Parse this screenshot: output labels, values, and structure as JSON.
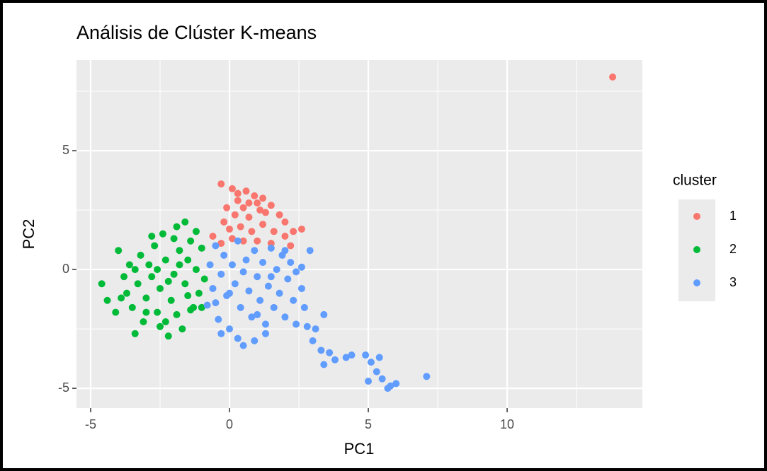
{
  "chart_data": {
    "type": "scatter",
    "title": "Análisis de Clúster K-means",
    "xlabel": "PC1",
    "ylabel": "PC2",
    "xlim": [
      -5.51,
      14.87
    ],
    "ylim": [
      -5.83,
      8.81
    ],
    "xticks": [
      -5,
      0,
      5,
      10
    ],
    "yticks": [
      -5,
      0,
      5
    ],
    "xminor": [
      -2.5,
      2.5,
      7.5,
      12.5
    ],
    "yminor": [
      -2.5,
      2.5,
      7.5
    ],
    "grid": true,
    "legend_title": "cluster",
    "legend": "right",
    "series": [
      {
        "name": "1",
        "color": "#F8766D",
        "x": [
          13.8,
          -0.3,
          0.1,
          0.3,
          0.6,
          0.9,
          1.2,
          1.5,
          1.0,
          0.5,
          0.2,
          0.7,
          1.3,
          1.8,
          2.0,
          2.3,
          2.6,
          -0.2,
          0.0,
          0.4,
          0.8,
          1.2,
          1.6,
          -0.6,
          -0.3,
          0.1,
          0.5,
          1.0,
          1.5,
          2.2,
          2.0,
          0.3,
          0.7,
          1.1,
          -0.1
        ],
        "y": [
          8.1,
          3.6,
          3.4,
          3.2,
          3.3,
          3.1,
          3.0,
          2.7,
          2.8,
          2.6,
          2.3,
          2.2,
          2.4,
          2.3,
          2.0,
          1.6,
          1.7,
          2.0,
          1.7,
          1.8,
          1.6,
          1.9,
          1.6,
          1.4,
          1.1,
          1.3,
          1.2,
          1.2,
          1.1,
          1.0,
          1.4,
          2.9,
          2.8,
          2.5,
          2.6
        ]
      },
      {
        "name": "2",
        "color": "#00BA38",
        "x": [
          -4.6,
          -4.4,
          -4.1,
          -4.0,
          -3.8,
          -3.7,
          -3.6,
          -3.5,
          -3.4,
          -3.3,
          -3.2,
          -3.1,
          -3.0,
          -2.9,
          -2.8,
          -2.7,
          -2.6,
          -2.5,
          -2.4,
          -2.3,
          -2.2,
          -2.1,
          -2.0,
          -1.9,
          -1.8,
          -1.7,
          -1.6,
          -1.5,
          -1.4,
          -1.3,
          -1.2,
          -1.1,
          -1.0,
          -0.9,
          -1.6,
          -2.0,
          -2.6,
          -3.0,
          -1.9,
          -1.4,
          -2.3,
          -3.9,
          -2.8,
          -1.2,
          -1.0,
          -2.2,
          -1.8,
          -3.4,
          -2.5,
          -1.5
        ],
        "y": [
          -0.6,
          -1.3,
          -1.8,
          0.8,
          -0.3,
          -1.0,
          0.2,
          -1.6,
          -2.7,
          -0.6,
          0.6,
          -2.2,
          -1.2,
          0.2,
          -0.3,
          1.0,
          -1.8,
          -0.8,
          1.5,
          0.4,
          -2.8,
          -1.3,
          -0.2,
          1.8,
          0.8,
          -2.5,
          -0.6,
          0.4,
          1.2,
          -1.6,
          0.0,
          -1.0,
          0.9,
          -0.4,
          2.0,
          1.3,
          0.0,
          -1.8,
          -1.9,
          -1.7,
          -2.2,
          -1.2,
          1.4,
          1.6,
          -1.6,
          -0.5,
          0.2,
          0.0,
          -2.4,
          -1.1
        ]
      },
      {
        "name": "3",
        "color": "#619CFF",
        "x": [
          -0.8,
          -0.7,
          -0.6,
          -0.5,
          -0.4,
          -0.3,
          -0.2,
          -0.1,
          0.0,
          0.1,
          0.2,
          0.3,
          0.4,
          0.5,
          0.6,
          0.7,
          0.8,
          0.9,
          1.0,
          1.1,
          1.2,
          1.3,
          1.4,
          1.5,
          1.6,
          1.7,
          1.8,
          1.9,
          2.0,
          2.1,
          2.2,
          2.3,
          2.4,
          2.6,
          2.7,
          2.9,
          2.6,
          0.3,
          -0.3,
          0.9,
          1.3,
          2.4,
          2.8,
          3.1,
          3.4,
          3.0,
          3.3,
          3.6,
          3.4,
          3.8,
          4.2,
          4.4,
          4.9,
          5.1,
          5.4,
          5.3,
          5.5,
          5.0,
          5.8,
          5.7,
          6.0,
          7.1,
          0.0,
          0.5,
          1.5,
          2.0,
          -0.5,
          1.0
        ],
        "y": [
          -1.5,
          0.2,
          -0.8,
          1.0,
          -2.1,
          -0.2,
          0.6,
          -1.1,
          -2.5,
          0.2,
          -0.6,
          1.2,
          -1.6,
          -3.2,
          0.4,
          -0.9,
          -2.0,
          0.8,
          -0.3,
          -1.3,
          0.3,
          -2.3,
          -0.7,
          0.9,
          -1.6,
          0.0,
          -1.0,
          0.6,
          -2.0,
          -0.4,
          0.3,
          -1.3,
          -0.1,
          -0.8,
          -1.6,
          0.8,
          0.1,
          -2.9,
          -2.7,
          -3.0,
          -2.7,
          -2.3,
          -2.4,
          -2.5,
          -1.9,
          -3.0,
          -3.4,
          -3.5,
          -4.0,
          -3.8,
          -3.7,
          -3.6,
          -3.6,
          -3.9,
          -3.7,
          -4.3,
          -4.6,
          -4.7,
          -4.9,
          -5.0,
          -4.8,
          -4.5,
          -1.0,
          -0.1,
          -0.3,
          0.8,
          -1.4,
          -1.9
        ]
      }
    ]
  }
}
